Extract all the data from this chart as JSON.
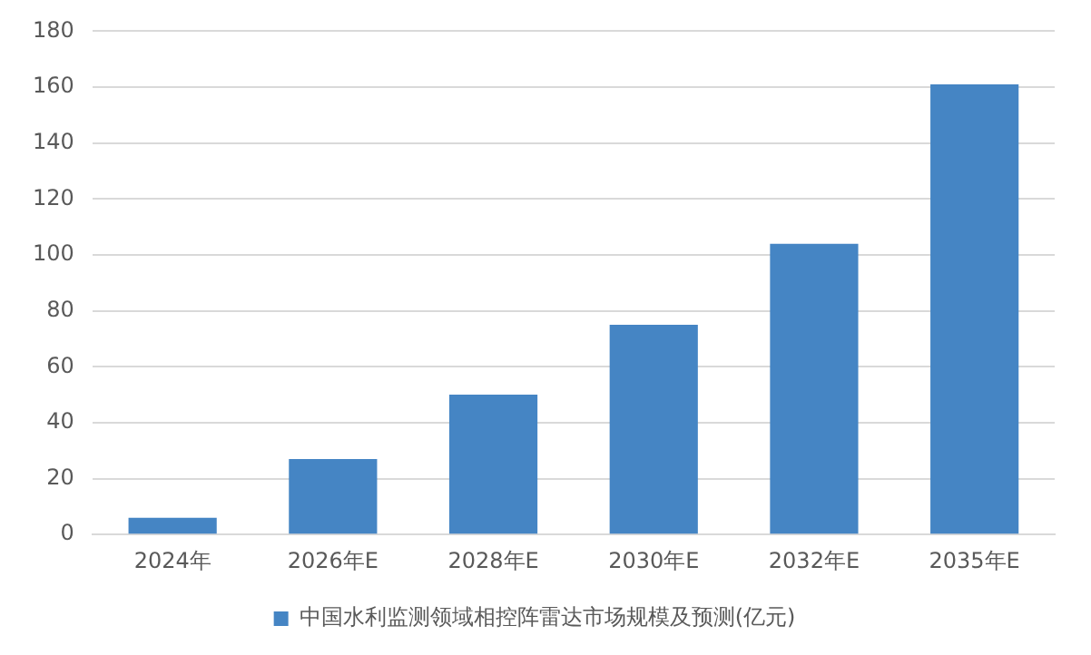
{
  "chart_data": {
    "type": "bar",
    "categories": [
      "2024年",
      "2026年E",
      "2028年E",
      "2030年E",
      "2032年E",
      "2035年E"
    ],
    "series": [
      {
        "name": "中国水利监测领域相控阵雷达市场规模及预测(亿元)",
        "color": "#4585c4",
        "values": [
          6,
          27,
          50,
          75,
          104,
          161
        ]
      }
    ],
    "ylim": [
      0,
      180
    ],
    "yticks": [
      0,
      20,
      40,
      60,
      80,
      100,
      120,
      140,
      160,
      180
    ],
    "grid": "y",
    "legend": "bottom"
  }
}
